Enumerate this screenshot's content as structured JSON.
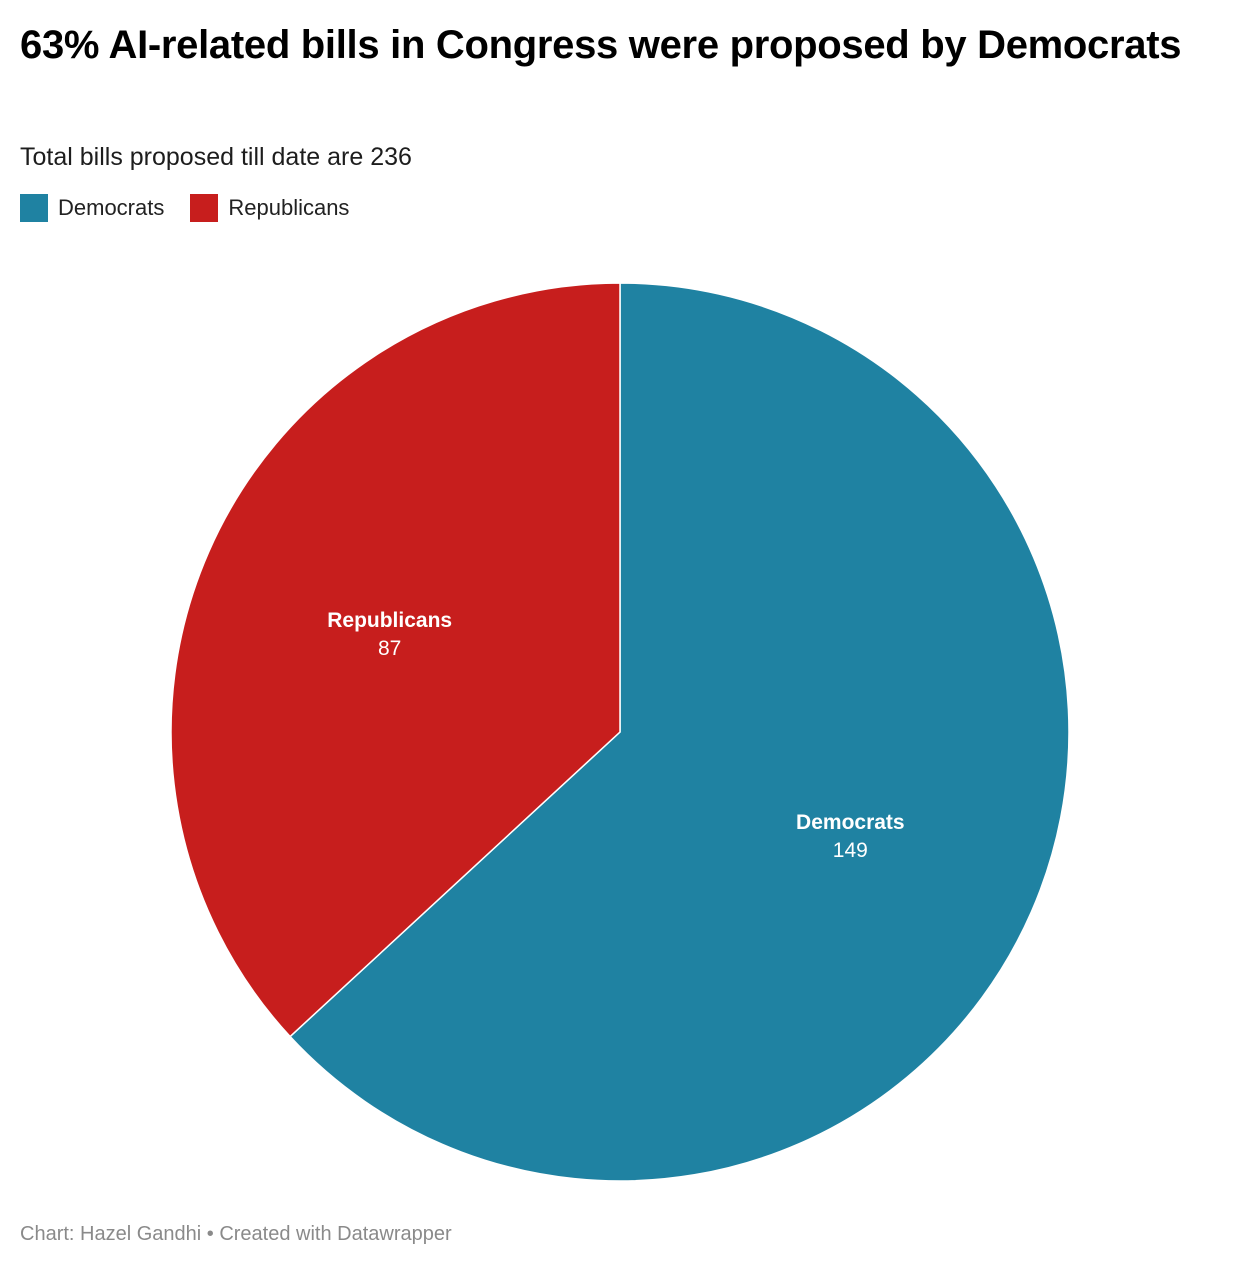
{
  "chart_data": {
    "type": "pie",
    "title": "63% AI-related bills in Congress were proposed by Democrats",
    "subtitle": "Total bills proposed till date are 236",
    "legend_placement": "top-left",
    "slices": [
      {
        "name": "Democrats",
        "value": 149,
        "color": "#1f82a2"
      },
      {
        "name": "Republicans",
        "value": 87,
        "color": "#c71e1d"
      }
    ]
  },
  "legend": {
    "items": [
      {
        "label": "Democrats",
        "color": "#1f82a2"
      },
      {
        "label": "Republicans",
        "color": "#c71e1d"
      }
    ]
  },
  "footer": {
    "text": "Chart: Hazel Gandhi • Created with Datawrapper"
  }
}
